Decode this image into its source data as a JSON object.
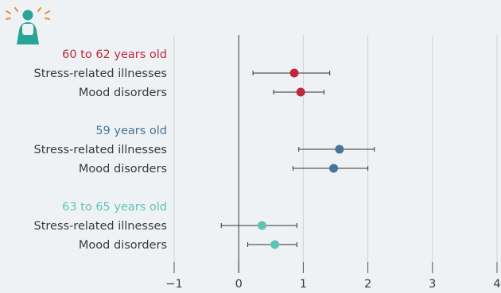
{
  "icon": "person-stress-icon",
  "colors": {
    "background": "#eef2f5",
    "group_1": "#c0283a",
    "group_2": "#4a7596",
    "group_3": "#5fc4b4",
    "gridline": "#cfd3d6",
    "axis": "#555555",
    "icon_body": "#28a596",
    "icon_rays": "#f08a3a"
  },
  "chart_data": {
    "type": "forest-plot",
    "xlim": [
      -1,
      4
    ],
    "x_ticks": [
      "−1",
      "0",
      "1",
      "2",
      "3",
      "4"
    ],
    "x_tick_values": [
      -1,
      0,
      1,
      2,
      3,
      4
    ],
    "grid": true,
    "groups": [
      {
        "label": "60 to 62 years old",
        "color": "#c0283a",
        "rows": [
          {
            "label": "Stress-related illnesses",
            "estimate": 0.86,
            "ci": [
              0.22,
              1.41
            ]
          },
          {
            "label": "Mood disorders",
            "estimate": 0.96,
            "ci": [
              0.54,
              1.32
            ]
          }
        ]
      },
      {
        "label": "59 years old",
        "color": "#4a7596",
        "rows": [
          {
            "label": "Stress-related illnesses",
            "estimate": 1.56,
            "ci": [
              0.93,
              2.1
            ]
          },
          {
            "label": "Mood disorders",
            "estimate": 1.47,
            "ci": [
              0.84,
              2.0
            ]
          }
        ]
      },
      {
        "label": "63 to 65 years old",
        "color": "#5fc4b4",
        "rows": [
          {
            "label": "Stress-related illnesses",
            "estimate": 0.36,
            "ci": [
              -0.27,
              0.9
            ]
          },
          {
            "label": "Mood disorders",
            "estimate": 0.56,
            "ci": [
              0.14,
              0.9
            ]
          }
        ]
      }
    ]
  }
}
